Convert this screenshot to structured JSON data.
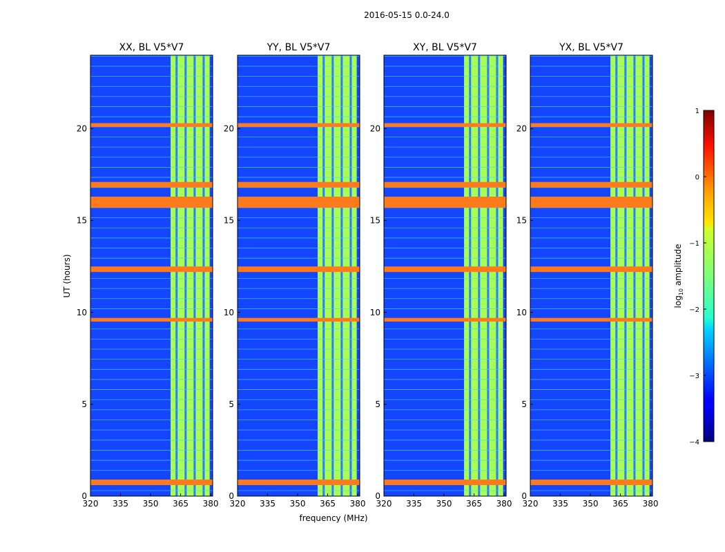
{
  "figure": {
    "suptitle": "2016-05-15 0.0-24.0",
    "xlabel": "frequency (MHz)",
    "ylabel": "UT (hours)"
  },
  "colorbar": {
    "label_prefix": "log",
    "label_sub": "10",
    "label_suffix": " amplitude",
    "range": [
      -4,
      1
    ],
    "ticks": [
      -4,
      -3,
      -2,
      -1,
      0,
      1
    ],
    "tick_labels": [
      "−4",
      "−3",
      "−2",
      "−1",
      "0",
      "1"
    ],
    "colormap": "jet"
  },
  "chart_data": [
    {
      "type": "heatmap",
      "title": "XX, BL V5*V7",
      "xlim": [
        320,
        381
      ],
      "ylim": [
        0,
        24
      ],
      "xticks": [
        320,
        335,
        350,
        365,
        380
      ],
      "yticks": [
        0,
        5,
        10,
        15,
        20
      ],
      "signal_band_mhz": [
        360,
        379.5
      ],
      "signal_channels_mhz": [
        363,
        367.5,
        372,
        376.5
      ],
      "rfi_bands_ut": [
        [
          0.6,
          0.9
        ],
        [
          9.5,
          9.7
        ],
        [
          12.2,
          12.5
        ],
        [
          15.7,
          16.3
        ],
        [
          16.8,
          17.1
        ],
        [
          20.1,
          20.3
        ]
      ]
    },
    {
      "type": "heatmap",
      "title": "YY, BL V5*V7",
      "xlim": [
        320,
        381
      ],
      "ylim": [
        0,
        24
      ],
      "xticks": [
        320,
        335,
        350,
        365,
        380
      ],
      "yticks": [
        0,
        5,
        10,
        15,
        20
      ],
      "signal_band_mhz": [
        360,
        379.5
      ],
      "signal_channels_mhz": [
        363,
        367.5,
        372,
        376.5
      ],
      "rfi_bands_ut": [
        [
          0.6,
          0.9
        ],
        [
          9.5,
          9.7
        ],
        [
          12.2,
          12.5
        ],
        [
          15.7,
          16.3
        ],
        [
          16.8,
          17.1
        ],
        [
          20.1,
          20.3
        ]
      ]
    },
    {
      "type": "heatmap",
      "title": "XY, BL V5*V7",
      "xlim": [
        320,
        381
      ],
      "ylim": [
        0,
        24
      ],
      "xticks": [
        320,
        335,
        350,
        365,
        380
      ],
      "yticks": [
        0,
        5,
        10,
        15,
        20
      ],
      "signal_band_mhz": [
        360,
        379.5
      ],
      "signal_channels_mhz": [
        363,
        367.5,
        372,
        376.5
      ],
      "rfi_bands_ut": [
        [
          0.6,
          0.9
        ],
        [
          9.5,
          9.7
        ],
        [
          12.2,
          12.5
        ],
        [
          15.7,
          16.3
        ],
        [
          16.8,
          17.1
        ],
        [
          20.1,
          20.3
        ]
      ]
    },
    {
      "type": "heatmap",
      "title": "YX, BL V5*V7",
      "xlim": [
        320,
        381
      ],
      "ylim": [
        0,
        24
      ],
      "xticks": [
        320,
        335,
        350,
        365,
        380
      ],
      "yticks": [
        0,
        5,
        10,
        15,
        20
      ],
      "signal_band_mhz": [
        360,
        379.5
      ],
      "signal_channels_mhz": [
        363,
        367.5,
        372,
        376.5
      ],
      "rfi_bands_ut": [
        [
          0.6,
          0.9
        ],
        [
          9.5,
          9.7
        ],
        [
          12.2,
          12.5
        ],
        [
          15.7,
          16.3
        ],
        [
          16.8,
          17.1
        ],
        [
          20.1,
          20.3
        ]
      ]
    }
  ]
}
